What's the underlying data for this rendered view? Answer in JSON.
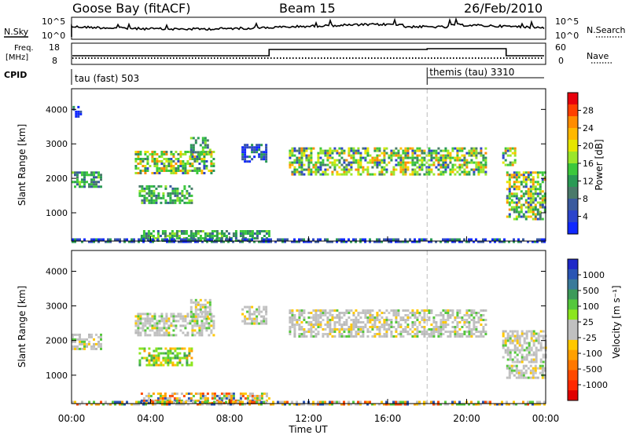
{
  "header": {
    "station": "Goose Bay (fitACF)",
    "beam": "Beam 15",
    "date": "26/Feb/2010"
  },
  "top_panels": {
    "noise": {
      "left_label": "N.Sky",
      "right_label": "N.Search",
      "left_ticks": [
        "10^5",
        "10^0"
      ],
      "right_ticks": [
        "10^5",
        "10^0"
      ]
    },
    "freq": {
      "left_label_line1": "Freq.",
      "left_label_line2": "[MHz]",
      "right_label": "Nave",
      "left_ticks": [
        "18",
        "8"
      ],
      "right_ticks": [
        "60",
        "0"
      ]
    },
    "cpid": {
      "label": "CPID",
      "programs": [
        {
          "name": "tau (fast) 503",
          "start_hour": 0
        },
        {
          "name": "themis (tau) 3310",
          "start_hour": 18
        }
      ]
    }
  },
  "chart_data": [
    {
      "type": "heatmap",
      "name": "power",
      "xlabel": "",
      "ylabel": "Slant Range [km]",
      "xlim": [
        0,
        24
      ],
      "ylim": [
        180,
        4600
      ],
      "yticks": [
        1000,
        2000,
        3000,
        4000
      ],
      "colorbar": {
        "label": "Power [dB]",
        "ticks": [
          "28",
          "24",
          "20",
          "16",
          "12",
          "8",
          "4"
        ],
        "colors": [
          "#e8000c",
          "#ff4000",
          "#ff8c00",
          "#ffb800",
          "#e6e600",
          "#9ae62a",
          "#3cc83c",
          "#2a9a55",
          "#4a7a6a",
          "#3a5a9e",
          "#2c44cc",
          "#1028ff"
        ]
      },
      "regions": [
        {
          "x": [
            0.0,
            1.5
          ],
          "y": [
            1750,
            2200
          ],
          "scheme": "green"
        },
        {
          "x": [
            0.05,
            0.5
          ],
          "y": [
            3800,
            4100
          ],
          "scheme": "blue"
        },
        {
          "x": [
            3.2,
            7.2
          ],
          "y": [
            2150,
            2800
          ],
          "scheme": "warm"
        },
        {
          "x": [
            6.0,
            7.0
          ],
          "y": [
            2700,
            3200
          ],
          "scheme": "green"
        },
        {
          "x": [
            3.4,
            6.1
          ],
          "y": [
            1300,
            1800
          ],
          "scheme": "green"
        },
        {
          "x": [
            8.6,
            9.8
          ],
          "y": [
            2500,
            3000
          ],
          "scheme": "blue"
        },
        {
          "x": [
            11.0,
            21.0
          ],
          "y": [
            2100,
            2900
          ],
          "scheme": "warm"
        },
        {
          "x": [
            21.8,
            22.5
          ],
          "y": [
            2400,
            2900
          ],
          "scheme": "warm"
        },
        {
          "x": [
            22.0,
            24.0
          ],
          "y": [
            1400,
            2200
          ],
          "scheme": "warm"
        },
        {
          "x": [
            22.0,
            24.0
          ],
          "y": [
            850,
            1400
          ],
          "scheme": "warm"
        },
        {
          "x": [
            3.5,
            10.0
          ],
          "y": [
            200,
            500
          ],
          "scheme": "green"
        },
        {
          "x": [
            0.0,
            24.0
          ],
          "y": [
            180,
            260
          ],
          "scheme": "blue"
        }
      ]
    },
    {
      "type": "heatmap",
      "name": "velocity",
      "xlabel": "Time UT",
      "ylabel": "Slant Range [km]",
      "xlim": [
        0,
        24
      ],
      "ylim": [
        180,
        4600
      ],
      "xticks": [
        "00:00",
        "04:00",
        "08:00",
        "12:00",
        "16:00",
        "20:00",
        "00:00"
      ],
      "yticks": [
        1000,
        2000,
        3000,
        4000
      ],
      "colorbar": {
        "label": "Velocity [m s⁻¹]",
        "ticks": [
          "1000",
          "500",
          "100",
          "25",
          "-25",
          "-100",
          "-500",
          "-1000"
        ],
        "colors": [
          "#1e28c8",
          "#2a55b4",
          "#3a7a9a",
          "#3c9a5a",
          "#55c83c",
          "#8ce61e",
          "#c0c0c0",
          "#c0c0c0",
          "#ffc800",
          "#ffa000",
          "#ff7800",
          "#ff4a00",
          "#ff2800",
          "#e00000"
        ]
      },
      "regions": [
        {
          "x": [
            0.0,
            1.5
          ],
          "y": [
            1750,
            2200
          ],
          "scheme": "grey"
        },
        {
          "x": [
            3.2,
            7.2
          ],
          "y": [
            2150,
            2800
          ],
          "scheme": "grey"
        },
        {
          "x": [
            6.0,
            7.0
          ],
          "y": [
            2700,
            3200
          ],
          "scheme": "grey"
        },
        {
          "x": [
            3.4,
            6.1
          ],
          "y": [
            1300,
            1800
          ],
          "scheme": "greenyellow"
        },
        {
          "x": [
            8.6,
            9.8
          ],
          "y": [
            2500,
            3000
          ],
          "scheme": "grey"
        },
        {
          "x": [
            11.0,
            21.0
          ],
          "y": [
            2100,
            2900
          ],
          "scheme": "grey"
        },
        {
          "x": [
            21.8,
            24.0
          ],
          "y": [
            1400,
            2300
          ],
          "scheme": "grey"
        },
        {
          "x": [
            22.0,
            24.0
          ],
          "y": [
            900,
            1300
          ],
          "scheme": "grey"
        },
        {
          "x": [
            3.5,
            10.0
          ],
          "y": [
            200,
            500
          ],
          "scheme": "mixed"
        },
        {
          "x": [
            0.0,
            24.0
          ],
          "y": [
            180,
            260
          ],
          "scheme": "mixed"
        }
      ]
    }
  ]
}
